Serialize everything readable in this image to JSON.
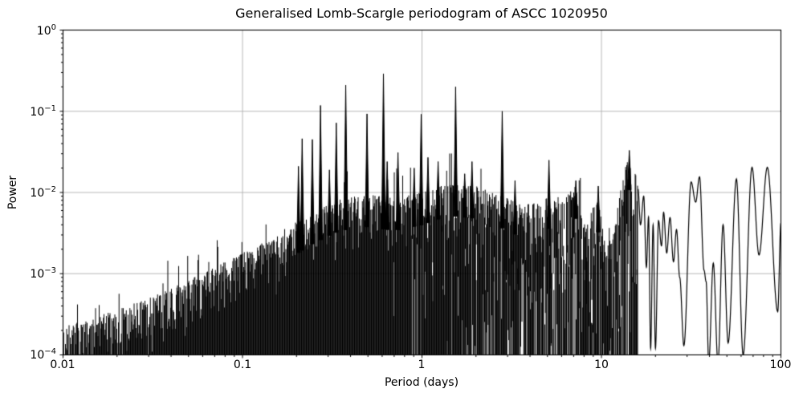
{
  "figure": {
    "title": "Generalised Lomb-Scargle periodogram of ASCC 1020950"
  },
  "chart_data": {
    "type": "line",
    "title": "Generalised Lomb-Scargle periodogram of ASCC 1020950",
    "xlabel": "Period (days)",
    "ylabel": "Power",
    "xscale": "log",
    "yscale": "log",
    "xlim": [
      0.01,
      100
    ],
    "ylim": [
      0.0001,
      1
    ],
    "grid": true,
    "legend": "none",
    "colors": {
      "line": "#000000",
      "grid": "#b0b0b0",
      "background": "#ffffff",
      "text": "#000000"
    },
    "x_ticks": [
      {
        "value": 0.01,
        "label": "0.01"
      },
      {
        "value": 0.1,
        "label": "0.1"
      },
      {
        "value": 1,
        "label": "1"
      },
      {
        "value": 10,
        "label": "10"
      },
      {
        "value": 100,
        "label": "100"
      }
    ],
    "y_ticks": [
      {
        "value": 1,
        "base": "10",
        "exp": "0"
      },
      {
        "value": 0.1,
        "base": "10",
        "exp": "−1"
      },
      {
        "value": 0.01,
        "base": "10",
        "exp": "−2"
      },
      {
        "value": 0.001,
        "base": "10",
        "exp": "−3"
      },
      {
        "value": 0.0001,
        "base": "10",
        "exp": "−4"
      }
    ],
    "noise_floor": 0.0001,
    "envelope": [
      [
        0.01,
        0.00022
      ],
      [
        0.014,
        0.00028
      ],
      [
        0.02,
        0.00036
      ],
      [
        0.03,
        0.0005
      ],
      [
        0.045,
        0.00075
      ],
      [
        0.065,
        0.0011
      ],
      [
        0.09,
        0.0016
      ],
      [
        0.13,
        0.0024
      ],
      [
        0.18,
        0.0038
      ],
      [
        0.25,
        0.006
      ],
      [
        0.35,
        0.0085
      ],
      [
        0.5,
        0.0095
      ],
      [
        0.7,
        0.0085
      ],
      [
        1.0,
        0.01
      ],
      [
        1.4,
        0.013
      ],
      [
        2.0,
        0.012
      ],
      [
        2.7,
        0.0095
      ],
      [
        3.6,
        0.007
      ],
      [
        4.5,
        0.0075
      ],
      [
        5.1,
        0.009
      ],
      [
        6.3,
        0.009
      ],
      [
        7.2,
        0.012
      ],
      [
        8.3,
        0.0038
      ],
      [
        9.4,
        0.011
      ],
      [
        10.6,
        0.002
      ],
      [
        11.8,
        0.0035
      ],
      [
        12.8,
        0.013
      ],
      [
        13.5,
        0.02
      ],
      [
        14.3,
        0.027
      ],
      [
        15.0,
        0.013
      ],
      [
        15.6,
        0.021
      ],
      [
        16.0,
        0.011
      ]
    ],
    "major_peaks": [
      [
        0.205,
        0.021
      ],
      [
        0.215,
        0.046
      ],
      [
        0.245,
        0.045
      ],
      [
        0.272,
        0.118
      ],
      [
        0.305,
        0.019
      ],
      [
        0.333,
        0.072
      ],
      [
        0.376,
        0.21
      ],
      [
        0.494,
        0.093
      ],
      [
        0.61,
        0.29
      ],
      [
        0.64,
        0.024
      ],
      [
        0.735,
        0.031
      ],
      [
        0.905,
        0.02
      ],
      [
        0.99,
        0.092
      ],
      [
        1.08,
        0.027
      ],
      [
        1.23,
        0.024
      ],
      [
        1.54,
        0.2
      ],
      [
        1.73,
        0.017
      ],
      [
        1.9,
        0.024
      ],
      [
        2.8,
        0.1
      ],
      [
        3.3,
        0.014
      ],
      [
        5.1,
        0.025
      ],
      [
        7.2,
        0.014
      ],
      [
        9.6,
        0.012
      ],
      [
        14.3,
        0.033
      ]
    ],
    "tail": [
      [
        16.0,
        0.011
      ],
      [
        16.5,
        0.004
      ],
      [
        17.2,
        0.009
      ],
      [
        17.8,
        0.0012
      ],
      [
        18.3,
        0.005
      ],
      [
        18.8,
        0.00012
      ],
      [
        19.4,
        0.004
      ],
      [
        20.0,
        0.00012
      ],
      [
        20.8,
        0.0045
      ],
      [
        21.6,
        0.0022
      ],
      [
        22.2,
        0.0057
      ],
      [
        23.1,
        0.0018
      ],
      [
        24.1,
        0.0049
      ],
      [
        25.2,
        0.0014
      ],
      [
        26.2,
        0.0035
      ],
      [
        27.3,
        0.0009
      ],
      [
        28.8,
        0.00013
      ],
      [
        31.6,
        0.0135
      ],
      [
        33.5,
        0.0076
      ],
      [
        35.2,
        0.0156
      ],
      [
        37.3,
        0.0011
      ],
      [
        38.3,
        0.0008
      ],
      [
        39.6,
        8e-05
      ],
      [
        42.0,
        0.00135
      ],
      [
        44.6,
        8e-05
      ],
      [
        47.6,
        0.004
      ],
      [
        50.8,
        0.00014
      ],
      [
        56.5,
        0.0147
      ],
      [
        61.6,
        0.0001
      ],
      [
        69.0,
        0.0204
      ],
      [
        75.5,
        0.0017
      ],
      [
        84.0,
        0.0204
      ],
      [
        96.0,
        0.00034
      ],
      [
        100.0,
        0.0042
      ]
    ]
  }
}
